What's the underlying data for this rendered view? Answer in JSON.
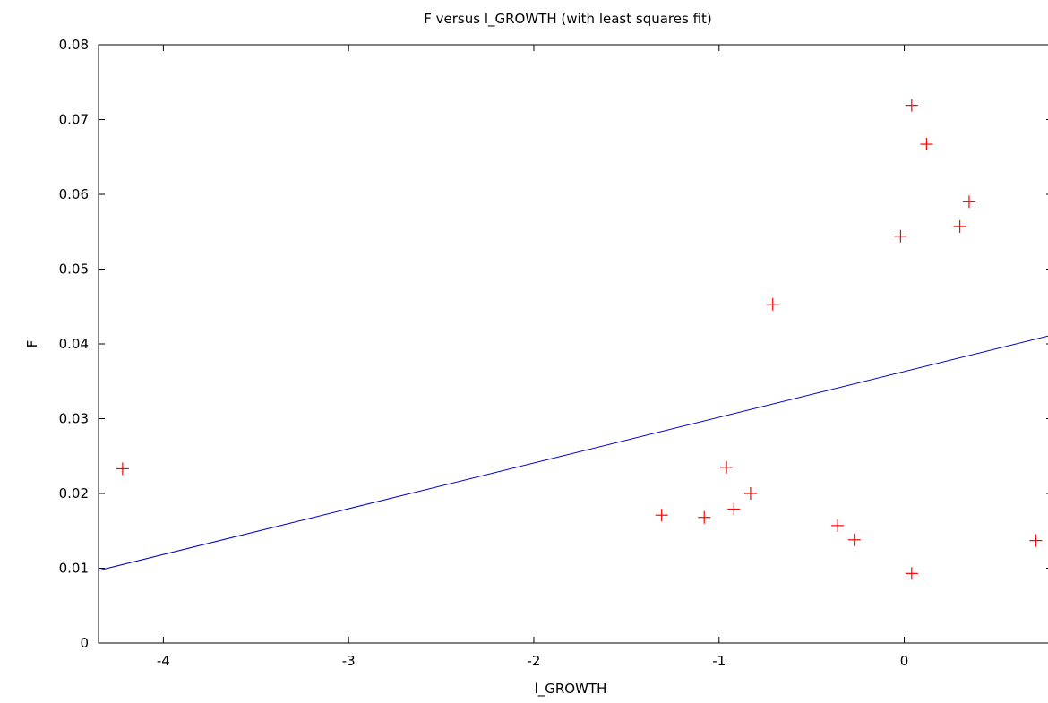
{
  "chart_data": {
    "type": "scatter",
    "title": "F versus l_GROWTH (with least squares fit)",
    "xlabel": "l_GROWTH",
    "ylabel": "F",
    "xlim": [
      -4.35,
      0.8
    ],
    "ylim": [
      0,
      0.08
    ],
    "x_ticks": [
      -4,
      -3,
      -2,
      -1,
      0
    ],
    "y_ticks": [
      0,
      0.01,
      0.02,
      0.03,
      0.04,
      0.05,
      0.06,
      0.07,
      0.08
    ],
    "x_tick_labels": [
      "-4",
      "-3",
      "-2",
      "-1",
      "0"
    ],
    "y_tick_labels": [
      "0",
      "0.01",
      "0.02",
      "0.03",
      "0.04",
      "0.05",
      "0.06",
      "0.07",
      "0.08"
    ],
    "grid": false,
    "points": [
      {
        "x": -4.22,
        "y": 0.0233
      },
      {
        "x": -1.31,
        "y": 0.0171
      },
      {
        "x": -1.08,
        "y": 0.0168
      },
      {
        "x": -0.96,
        "y": 0.0235
      },
      {
        "x": -0.92,
        "y": 0.0179
      },
      {
        "x": -0.83,
        "y": 0.02
      },
      {
        "x": -0.71,
        "y": 0.0453
      },
      {
        "x": -0.36,
        "y": 0.0157
      },
      {
        "x": -0.27,
        "y": 0.0138
      },
      {
        "x": -0.02,
        "y": 0.0544
      },
      {
        "x": 0.04,
        "y": 0.0719
      },
      {
        "x": 0.04,
        "y": 0.0093
      },
      {
        "x": 0.12,
        "y": 0.0667
      },
      {
        "x": 0.3,
        "y": 0.0557
      },
      {
        "x": 0.35,
        "y": 0.059
      },
      {
        "x": 0.71,
        "y": 0.0137
      }
    ],
    "fit_line": {
      "x": [
        -4.35,
        0.8
      ],
      "y": [
        0.0097,
        0.0412
      ]
    },
    "colors": {
      "points": "#ff0000",
      "fit_line": "#0000cc",
      "axes": "#000000"
    }
  }
}
